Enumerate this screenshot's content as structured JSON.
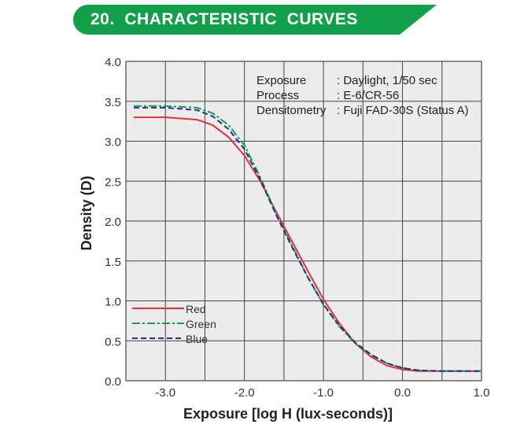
{
  "section_title": "20.  CHARACTERISTIC  CURVES",
  "colors": {
    "banner": "#12a04a",
    "red": "#e8303c",
    "green": "#11a050",
    "blue": "#2a2f86"
  },
  "chart_data": {
    "type": "line",
    "title": "",
    "xlabel": "Exposure [log H (lux-seconds)]",
    "ylabel": "Density (D)",
    "xlim": [
      -3.5,
      1.0
    ],
    "ylim": [
      0.0,
      4.0
    ],
    "grid": true,
    "x_ticks": [
      -3.0,
      -2.0,
      -1.0,
      0.0,
      1.0
    ],
    "x_tick_labels": [
      "-3.0",
      "-2.0",
      "-1.0",
      "0.0",
      "1.0"
    ],
    "y_ticks": [
      0.0,
      0.5,
      1.0,
      1.5,
      2.0,
      2.5,
      3.0,
      3.5,
      4.0
    ],
    "y_tick_labels": [
      "0.0",
      "0.5",
      "1.0",
      "1.5",
      "2.0",
      "2.5",
      "3.0",
      "3.5",
      "4.0"
    ],
    "legend_placement": "bottom-left",
    "annotations": [
      {
        "label": "Exposure",
        "value": ": Daylight, 1/50 sec"
      },
      {
        "label": "Process",
        "value": ": E-6/CR-56"
      },
      {
        "label": "Densitometry",
        "value": ": Fuji FAD-30S (Status A)"
      }
    ],
    "x": [
      -3.4,
      -3.0,
      -2.6,
      -2.4,
      -2.2,
      -2.0,
      -1.8,
      -1.6,
      -1.4,
      -1.2,
      -1.0,
      -0.8,
      -0.6,
      -0.4,
      -0.2,
      0.0,
      0.2,
      0.5,
      1.0
    ],
    "series": [
      {
        "name": "Red",
        "style": "solid",
        "values": [
          3.3,
          3.3,
          3.27,
          3.2,
          3.05,
          2.82,
          2.5,
          2.12,
          1.75,
          1.38,
          1.02,
          0.72,
          0.47,
          0.3,
          0.19,
          0.14,
          0.12,
          0.12,
          0.12
        ]
      },
      {
        "name": "Green",
        "style": "dashdot",
        "values": [
          3.44,
          3.44,
          3.42,
          3.35,
          3.2,
          2.95,
          2.55,
          2.1,
          1.7,
          1.3,
          0.95,
          0.68,
          0.47,
          0.32,
          0.22,
          0.16,
          0.13,
          0.12,
          0.12
        ]
      },
      {
        "name": "Blue",
        "style": "dashed",
        "values": [
          3.42,
          3.42,
          3.39,
          3.31,
          3.15,
          2.9,
          2.52,
          2.08,
          1.68,
          1.3,
          0.96,
          0.69,
          0.48,
          0.33,
          0.22,
          0.16,
          0.13,
          0.12,
          0.12
        ]
      }
    ]
  }
}
